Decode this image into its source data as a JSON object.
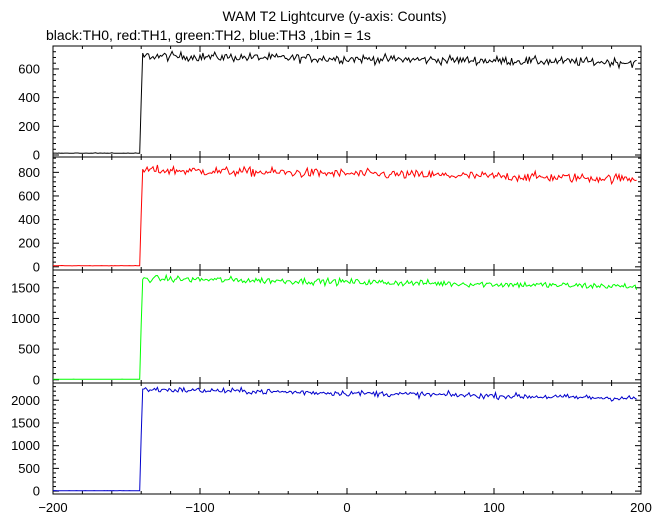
{
  "chart_data": {
    "type": "line",
    "title": "WAM T2 Lightcurve (y-axis: Counts)",
    "subtitle": "black:TH0, red:TH1, green:TH2, blue:TH3 ,1bin = 1s",
    "xlabel": "",
    "ylabel": "",
    "xlim": [
      -200,
      200
    ],
    "x_ticks": [
      -200,
      -100,
      0,
      100,
      200
    ],
    "x_tick_labels": [
      "−200",
      "−100",
      "0",
      "100",
      "200"
    ],
    "grid": false,
    "bin_seconds": 1,
    "trigger_x": -140,
    "panels": [
      {
        "series": "TH0",
        "color": "#000000",
        "ylim": [
          0,
          760
        ],
        "yticks": [
          0,
          200,
          400,
          600
        ],
        "background": 12,
        "plateau_start": 690,
        "plateau_end": 645,
        "noise": 22
      },
      {
        "series": "TH1",
        "color": "#ff0000",
        "ylim": [
          -10,
          930
        ],
        "yticks": [
          0,
          200,
          400,
          600,
          800
        ],
        "background": 8,
        "plateau_start": 820,
        "plateau_end": 745,
        "noise": 28
      },
      {
        "series": "TH2",
        "color": "#00ff00",
        "ylim": [
          -20,
          1790
        ],
        "yticks": [
          0,
          500,
          1000,
          1500
        ],
        "background": 8,
        "plateau_start": 1650,
        "plateau_end": 1520,
        "noise": 38
      },
      {
        "series": "TH3",
        "color": "#0000cc",
        "ylim": [
          -20,
          2380
        ],
        "yticks": [
          0,
          500,
          1000,
          1500,
          2000
        ],
        "background": 8,
        "plateau_start": 2240,
        "plateau_end": 2040,
        "noise": 45
      }
    ]
  }
}
